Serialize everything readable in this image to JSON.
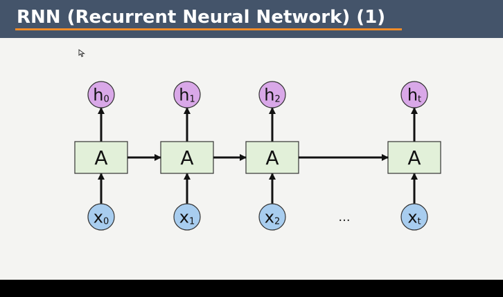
{
  "slide": {
    "title": "RNN (Recurrent Neural Network) (1)"
  },
  "diagram": {
    "cell_label": "A",
    "ellipsis": "...",
    "steps": [
      {
        "hidden": "h",
        "hidden_sub": "0",
        "input": "x",
        "input_sub": "0"
      },
      {
        "hidden": "h",
        "hidden_sub": "1",
        "input": "x",
        "input_sub": "1"
      },
      {
        "hidden": "h",
        "hidden_sub": "2",
        "input": "x",
        "input_sub": "2"
      },
      {
        "hidden": "h",
        "hidden_sub": "t",
        "input": "x",
        "input_sub": "t"
      }
    ],
    "colors": {
      "cell_fill": "#e2f0d9",
      "hidden_fill": "#d9a8e8",
      "input_fill": "#a8cdef",
      "stroke": "#111111"
    }
  }
}
